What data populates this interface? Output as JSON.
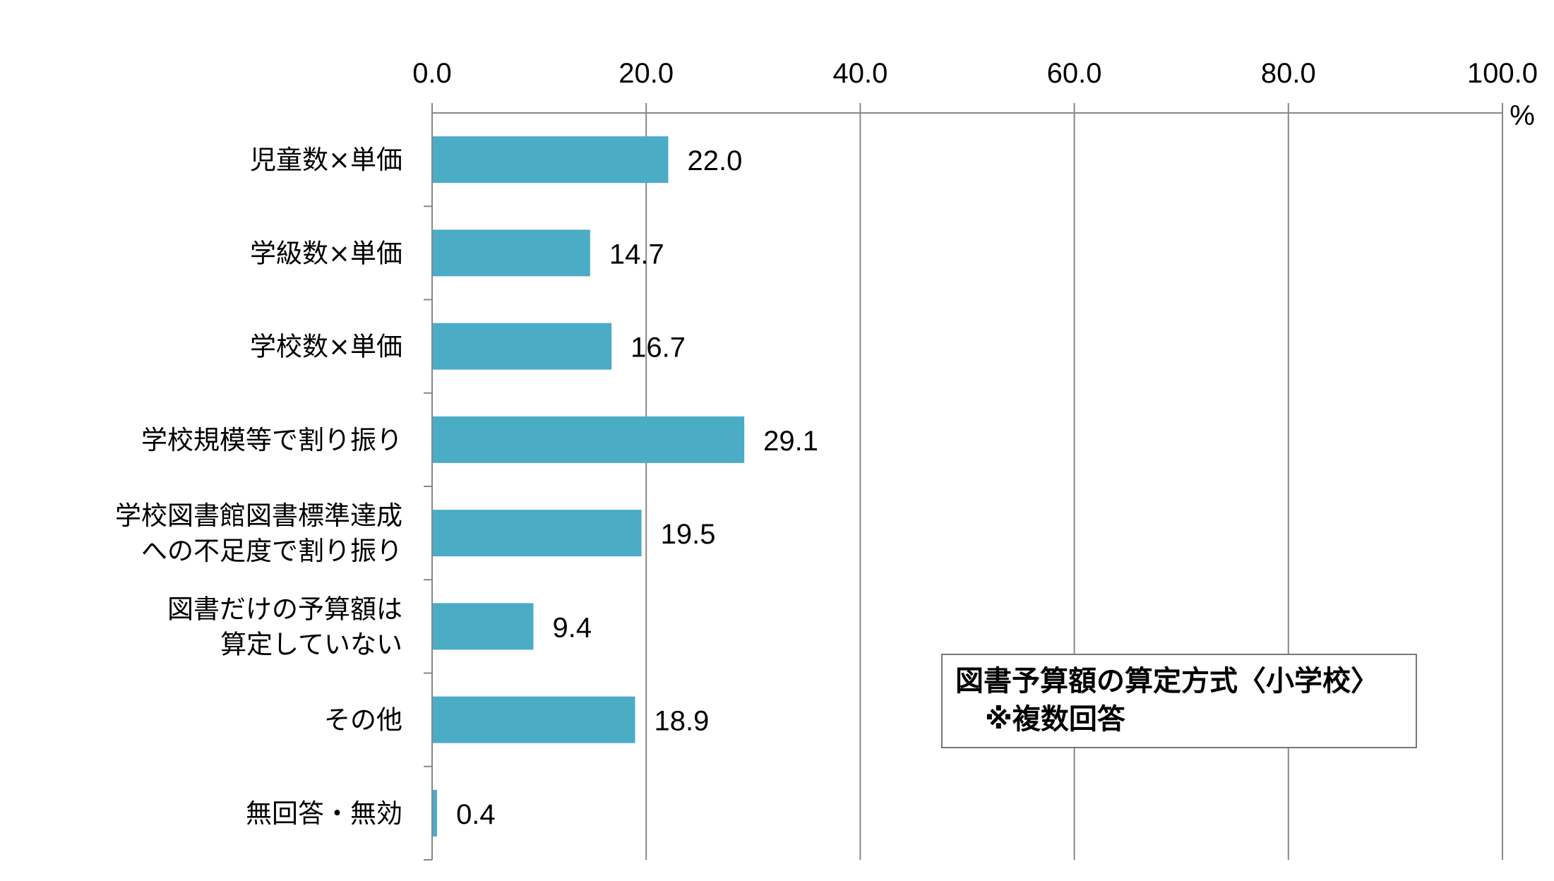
{
  "chart_data": {
    "type": "bar",
    "orientation": "horizontal",
    "categories": [
      [
        "児童数×単価"
      ],
      [
        "学級数×単価"
      ],
      [
        "学校数×単価"
      ],
      [
        "学校規模等で割り振り"
      ],
      [
        "学校図書館図書標準達成",
        "への不足度で割り振り"
      ],
      [
        "図書だけの予算額は",
        "算定していない"
      ],
      [
        "その他"
      ],
      [
        "無回答・無効"
      ]
    ],
    "values": [
      22.0,
      14.7,
      16.7,
      29.1,
      19.5,
      9.4,
      18.9,
      0.4
    ],
    "value_labels": [
      "22.0",
      "14.7",
      "16.7",
      "29.1",
      "19.5",
      "9.4",
      "18.9",
      "0.4"
    ],
    "xlim": [
      0,
      100
    ],
    "xticks": [
      "0.0",
      "20.0",
      "40.0",
      "60.0",
      "80.0",
      "100.0"
    ],
    "xtick_values": [
      0,
      20,
      40,
      60,
      80,
      100
    ],
    "x_unit": "%",
    "grid": true,
    "axis_position": "top",
    "bar_color": "#4BACC6",
    "grid_color": "#888888"
  },
  "annotation": {
    "line1": "図書予算額の算定方式〈小学校〉",
    "line2": "※複数回答"
  }
}
